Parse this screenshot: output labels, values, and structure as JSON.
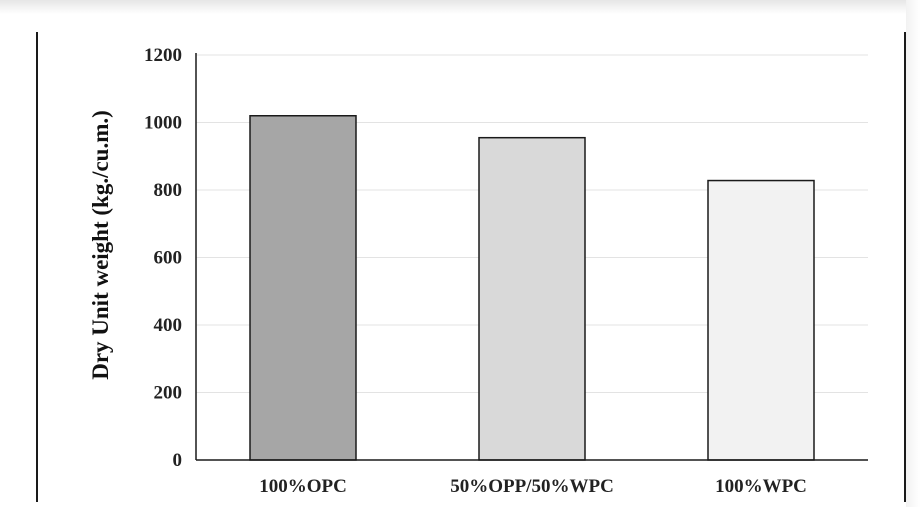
{
  "chart_data": {
    "type": "bar",
    "title": "",
    "xlabel": "",
    "ylabel": "Dry Unit weight (kg./cu.m.)",
    "categories": [
      "100%OPC",
      "50%OPP/50%WPC",
      "100%WPC"
    ],
    "values": [
      1020,
      955,
      828
    ],
    "bar_colors": [
      "#a6a6a6",
      "#d9d9d9",
      "#f2f2f2"
    ],
    "bar_outline": "#1a1a1a",
    "ylim": [
      0,
      1200
    ],
    "yticks": [
      0,
      200,
      400,
      600,
      800,
      1000,
      1200
    ],
    "grid": true,
    "legend": "none"
  }
}
